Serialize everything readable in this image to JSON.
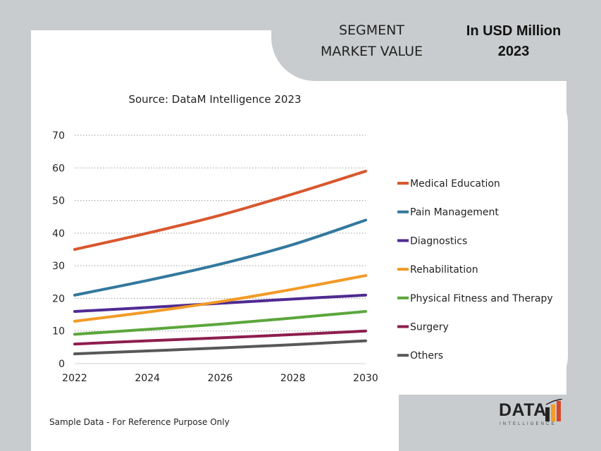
{
  "header": {
    "segment_title": "SEGMENT\nMARKET VALUE",
    "unit_line1": "In USD Million",
    "unit_line2": "2023"
  },
  "source_note": "Source: DataM Intelligence 2023",
  "footnote": "Sample Data - For Reference Purpose Only",
  "logo": {
    "word": "DATA",
    "tagline": "INTELLIGENCE"
  },
  "colors": {
    "background": "#c9ccce",
    "card": "#ffffff",
    "logo_orange": "#f39c28",
    "logo_red": "#d9472b"
  },
  "chart_data": {
    "type": "line",
    "title": "",
    "xlabel": "",
    "ylabel": "",
    "x": [
      2022,
      2024,
      2026,
      2028,
      2030
    ],
    "x_range": [
      2022,
      2030
    ],
    "ylim": [
      0,
      70
    ],
    "y_ticks": [
      0,
      10,
      20,
      30,
      40,
      50,
      60,
      70
    ],
    "x_ticks": [
      2022,
      2024,
      2026,
      2028,
      2030
    ],
    "grid": "horizontal dotted",
    "legend_position": "right",
    "series": [
      {
        "name": "Medical Education",
        "color": "#d9572e",
        "values": [
          35,
          40,
          45.5,
          52,
          59
        ]
      },
      {
        "name": "Pain Management",
        "color": "#33789e",
        "values": [
          21,
          25.5,
          30.5,
          36.5,
          44
        ]
      },
      {
        "name": "Diagnostics",
        "color": "#4f2a92",
        "values": [
          16,
          17.2,
          18.5,
          19.8,
          21
        ]
      },
      {
        "name": "Rehabilitation",
        "color": "#f29a26",
        "values": [
          13,
          15.8,
          19,
          22.8,
          27
        ]
      },
      {
        "name": "Physical Fitness and Therapy",
        "color": "#5ca63c",
        "values": [
          9,
          10.5,
          12.1,
          14,
          16
        ]
      },
      {
        "name": "Surgery",
        "color": "#8e1e4f",
        "values": [
          6,
          7,
          7.9,
          8.9,
          10
        ]
      },
      {
        "name": "Others",
        "color": "#585858",
        "values": [
          3,
          3.9,
          4.8,
          5.8,
          7
        ]
      }
    ]
  }
}
